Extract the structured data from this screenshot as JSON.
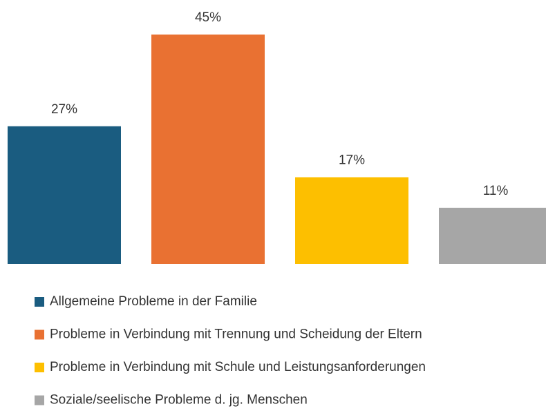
{
  "chart_data": {
    "type": "bar",
    "series": [
      {
        "name": "Allgemeine Probleme in der Familie",
        "color": "#1a5c80",
        "values": [
          27
        ],
        "value_labels": [
          "27%"
        ]
      },
      {
        "name": "Probleme in Verbindung mit Trennung und Scheidung der Eltern",
        "color": "#e97132",
        "values": [
          45
        ],
        "value_labels": [
          "45%"
        ]
      },
      {
        "name": "Probleme in Verbindung mit Schule und Leistungsanforderungen",
        "color": "#fdbf00",
        "values": [
          17
        ],
        "value_labels": [
          "17%"
        ]
      },
      {
        "name": "Soziale/seelische Probleme d. jg. Menschen",
        "color": "#a6a6a6",
        "values": [
          11
        ],
        "value_labels": [
          "11%"
        ]
      }
    ],
    "legend": "bottom-left"
  }
}
